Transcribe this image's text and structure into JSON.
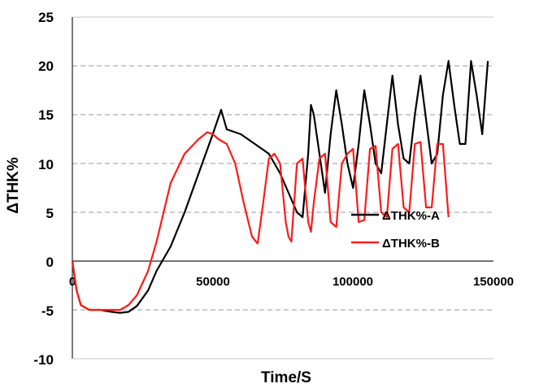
{
  "chart_data": {
    "type": "line",
    "title": "",
    "xlabel": "Time/S",
    "ylabel": "ΔTHK%",
    "xlim": [
      0,
      150000
    ],
    "ylim": [
      -10,
      25
    ],
    "x_ticks": [
      "0",
      "50000",
      "100000",
      "150000"
    ],
    "y_ticks": [
      "25",
      "20",
      "15",
      "10",
      "5",
      "0",
      "-5",
      "-10"
    ],
    "grid": "horizontal dashed",
    "legend_position": "right-middle",
    "series": [
      {
        "name": "ΔTHK%-A",
        "color": "#000000",
        "x": [
          0,
          1500,
          3000,
          6000,
          10000,
          14000,
          17000,
          20000,
          23000,
          27000,
          30000,
          35000,
          40000,
          45000,
          50000,
          53000,
          55000,
          60000,
          65000,
          70000,
          74000,
          77000,
          80000,
          82000,
          84000,
          85000,
          86000,
          88000,
          90000,
          92000,
          94000,
          96000,
          98000,
          100000,
          102000,
          104000,
          106000,
          108000,
          110000,
          112000,
          114000,
          116000,
          118000,
          120000,
          122000,
          124000,
          126000,
          128000,
          130000,
          132000,
          134000,
          136000,
          138000,
          140000,
          142000,
          144000,
          146000,
          148000
        ],
        "y": [
          0,
          -3,
          -4.5,
          -5,
          -5,
          -5.2,
          -5.3,
          -5.2,
          -4.6,
          -3,
          -1,
          1.5,
          5,
          9,
          13,
          15.5,
          13.5,
          13,
          12,
          11,
          9,
          7,
          5,
          4.5,
          11,
          16,
          15,
          11,
          7,
          13,
          17.5,
          14,
          10,
          7.5,
          12,
          17.5,
          14,
          10,
          9,
          14,
          19,
          14,
          10.5,
          10,
          15,
          19,
          14.5,
          10,
          11,
          17,
          20.5,
          16,
          12,
          12,
          20.5,
          17,
          13,
          20.5
        ]
      },
      {
        "name": "ΔTHK%-B",
        "color": "#ff1a1a",
        "x": [
          0,
          1500,
          3000,
          6000,
          10000,
          14000,
          17000,
          20000,
          23000,
          27000,
          30000,
          35000,
          40000,
          45000,
          48000,
          50000,
          52000,
          55000,
          58000,
          61000,
          64000,
          66000,
          68000,
          70000,
          72000,
          74000,
          76000,
          77000,
          78000,
          80000,
          82000,
          84000,
          85000,
          86000,
          88000,
          90000,
          92000,
          94000,
          96000,
          98000,
          100000,
          102000,
          104000,
          106000,
          108000,
          110000,
          112000,
          114000,
          116000,
          118000,
          120000,
          122000,
          124000,
          126000,
          128000,
          130000,
          132000,
          134000
        ],
        "y": [
          0,
          -3,
          -4.5,
          -5,
          -5,
          -5,
          -5,
          -4.5,
          -3.5,
          -1,
          2,
          8,
          11,
          12.5,
          13.2,
          13,
          12.5,
          12,
          10,
          6,
          2.5,
          1.8,
          6,
          10.5,
          11,
          10,
          4,
          2.5,
          2,
          10,
          10.5,
          4,
          3,
          6,
          10.5,
          11,
          4,
          3.5,
          10,
          11,
          11.5,
          4,
          4.2,
          11.5,
          11.8,
          5,
          4.5,
          11.5,
          12,
          5.5,
          5,
          12,
          12.2,
          5.5,
          5.5,
          12,
          12,
          4.5
        ]
      }
    ]
  }
}
